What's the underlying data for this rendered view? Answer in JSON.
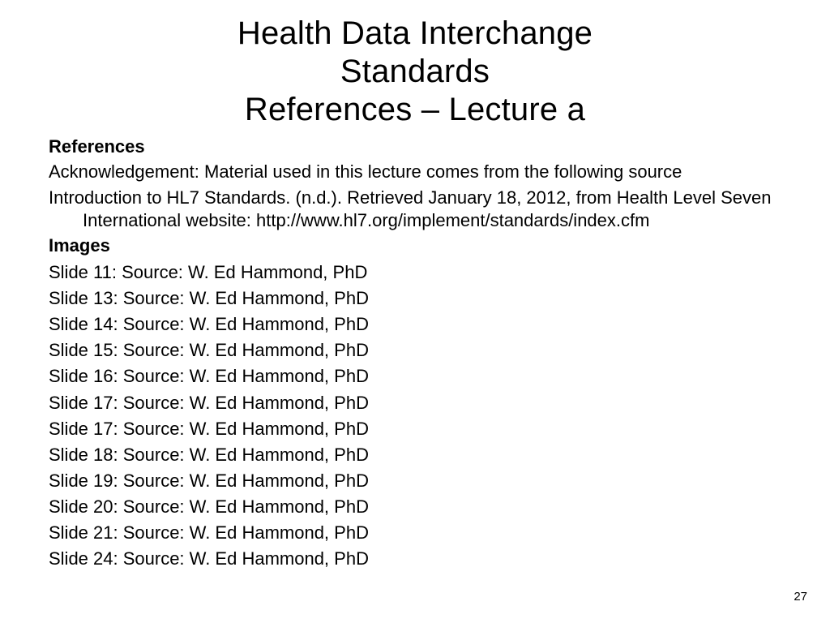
{
  "colors": {
    "background": "#ffffff",
    "text": "#000000"
  },
  "typography": {
    "title_font": "Verdana",
    "body_font": "Arial",
    "title_fontsize_pt": 30,
    "body_fontsize_pt": 17,
    "pagenum_fontsize_pt": 11
  },
  "title": {
    "line1": "Health Data Interchange",
    "line2": "Standards",
    "line3": "References – Lecture a"
  },
  "references": {
    "heading": "References",
    "acknowledgement": "Acknowledgement:  Material used in this lecture comes from the following  source",
    "citation": "Introduction to HL7 Standards. (n.d.). Retrieved January 18, 2012, from Health Level Seven International website: http://www.hl7.org/implement/standards/index.cfm"
  },
  "images": {
    "heading": "Images",
    "items": [
      "Slide 11:  Source:  W. Ed Hammond, PhD",
      "Slide 13:  Source:  W. Ed Hammond, PhD",
      "Slide 14:  Source:  W. Ed Hammond, PhD",
      "Slide 15:  Source:  W. Ed Hammond, PhD",
      "Slide 16:  Source:  W. Ed Hammond, PhD",
      "Slide 17:  Source:  W. Ed Hammond, PhD",
      "Slide 17:  Source:  W. Ed Hammond, PhD",
      "Slide 18:  Source:  W. Ed Hammond, PhD",
      "Slide 19:  Source:  W. Ed Hammond, PhD",
      "Slide 20:  Source:  W. Ed Hammond, PhD",
      "Slide 21:  Source:  W. Ed Hammond, PhD",
      "Slide 24:  Source:  W. Ed Hammond, PhD"
    ]
  },
  "page_number": "27"
}
